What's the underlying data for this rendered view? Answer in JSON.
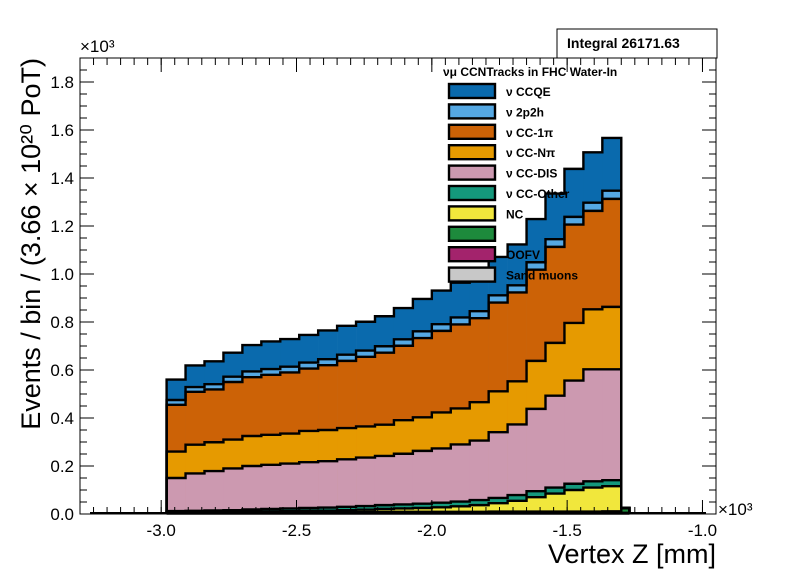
{
  "chart_data": {
    "type": "area",
    "stacked": true,
    "stats_box": "Integral 26171.63",
    "x_axis": {
      "label": "Vertex Z [mm]",
      "range": [
        -3.3,
        -0.95
      ],
      "ticks": [
        "-3.0",
        "-2.5",
        "-2.0",
        "-1.5",
        "-1.0"
      ],
      "tick_values": [
        -3.0,
        -2.5,
        -2.0,
        -1.5,
        -1.0
      ],
      "exponent": "×10³"
    },
    "y_axis": {
      "label": "Events / bin / (3.66 × 10²⁰ PoT)",
      "range": [
        0,
        1.9
      ],
      "ticks": [
        "0.0",
        "0.2",
        "0.4",
        "0.6",
        "0.8",
        "1.0",
        "1.2",
        "1.4",
        "1.6",
        "1.8"
      ],
      "tick_values": [
        0.0,
        0.2,
        0.4,
        0.6,
        0.8,
        1.0,
        1.2,
        1.4,
        1.6,
        1.8
      ],
      "exponent": "×10³"
    },
    "legend": {
      "title": "νμ CCNTracks in FHC Water-In",
      "placement": "top-right"
    },
    "bin_edges": [
      -2.98,
      -2.91,
      -2.84,
      -2.77,
      -2.7,
      -2.63,
      -2.56,
      -2.49,
      -2.42,
      -2.35,
      -2.28,
      -2.21,
      -2.14,
      -2.07,
      -2.0,
      -1.93,
      -1.86,
      -1.79,
      -1.72,
      -1.65,
      -1.58,
      -1.51,
      -1.44,
      -1.37,
      -1.3,
      -1.27
    ],
    "series": [
      {
        "name": "Sand muons",
        "color": "#c8c8c8",
        "values": [
          0.002,
          0.002,
          0.002,
          0.002,
          0.002,
          0.002,
          0.002,
          0.002,
          0.002,
          0.002,
          0.002,
          0.002,
          0.002,
          0.002,
          0.002,
          0.002,
          0.002,
          0.002,
          0.002,
          0.002,
          0.002,
          0.002,
          0.002,
          0.002,
          0.002
        ]
      },
      {
        "name": "OOFV",
        "color": "#a3236c",
        "values": [
          0.003,
          0.003,
          0.003,
          0.003,
          0.003,
          0.003,
          0.003,
          0.003,
          0.003,
          0.003,
          0.003,
          0.003,
          0.003,
          0.003,
          0.003,
          0.003,
          0.003,
          0.003,
          0.003,
          0.003,
          0.003,
          0.003,
          0.003,
          0.003,
          0.003
        ]
      },
      {
        "name": "",
        "color": "#1d8a3c",
        "values": [
          0.002,
          0.002,
          0.002,
          0.002,
          0.003,
          0.003,
          0.003,
          0.003,
          0.003,
          0.003,
          0.003,
          0.004,
          0.004,
          0.004,
          0.004,
          0.004,
          0.004,
          0.005,
          0.005,
          0.005,
          0.005,
          0.005,
          0.005,
          0.006,
          0.02
        ]
      },
      {
        "name": "NC",
        "color": "#f1e73c",
        "values": [
          0.0,
          0.0,
          0.001,
          0.001,
          0.002,
          0.003,
          0.004,
          0.005,
          0.006,
          0.008,
          0.01,
          0.012,
          0.014,
          0.016,
          0.019,
          0.023,
          0.028,
          0.035,
          0.045,
          0.06,
          0.075,
          0.09,
          0.1,
          0.105,
          0.0
        ]
      },
      {
        "name": "ν CC-Other",
        "color": "#14987c",
        "values": [
          0.005,
          0.006,
          0.007,
          0.008,
          0.009,
          0.01,
          0.011,
          0.012,
          0.013,
          0.014,
          0.015,
          0.016,
          0.017,
          0.018,
          0.019,
          0.02,
          0.021,
          0.022,
          0.024,
          0.025,
          0.025,
          0.026,
          0.026,
          0.025,
          0.0
        ]
      },
      {
        "name": "ν CC-DIS",
        "color": "#cc99b0",
        "values": [
          0.138,
          0.156,
          0.164,
          0.174,
          0.181,
          0.184,
          0.187,
          0.191,
          0.193,
          0.198,
          0.202,
          0.205,
          0.211,
          0.22,
          0.226,
          0.238,
          0.248,
          0.274,
          0.294,
          0.343,
          0.383,
          0.43,
          0.467,
          0.462,
          0.0
        ]
      },
      {
        "name": "ν CC-Nπ",
        "color": "#e69a00",
        "values": [
          0.11,
          0.12,
          0.12,
          0.12,
          0.125,
          0.125,
          0.125,
          0.13,
          0.13,
          0.13,
          0.13,
          0.13,
          0.14,
          0.14,
          0.15,
          0.15,
          0.16,
          0.17,
          0.18,
          0.2,
          0.22,
          0.24,
          0.25,
          0.26,
          0.0
        ]
      },
      {
        "name": "ν CC-1π",
        "color": "#cc6206",
        "values": [
          0.195,
          0.22,
          0.22,
          0.24,
          0.245,
          0.25,
          0.255,
          0.26,
          0.27,
          0.28,
          0.29,
          0.3,
          0.31,
          0.33,
          0.34,
          0.35,
          0.35,
          0.37,
          0.37,
          0.38,
          0.4,
          0.41,
          0.41,
          0.45,
          0.0
        ]
      },
      {
        "name": "ν 2p2h",
        "color": "#55a8e3",
        "values": [
          0.02,
          0.02,
          0.022,
          0.022,
          0.024,
          0.024,
          0.024,
          0.025,
          0.025,
          0.026,
          0.026,
          0.027,
          0.027,
          0.028,
          0.028,
          0.029,
          0.029,
          0.03,
          0.03,
          0.031,
          0.032,
          0.032,
          0.034,
          0.034,
          0.0
        ]
      },
      {
        "name": "ν CCQE",
        "color": "#0a6aad",
        "values": [
          0.085,
          0.09,
          0.095,
          0.1,
          0.11,
          0.115,
          0.115,
          0.115,
          0.12,
          0.12,
          0.12,
          0.125,
          0.13,
          0.135,
          0.14,
          0.145,
          0.15,
          0.16,
          0.17,
          0.18,
          0.19,
          0.2,
          0.21,
          0.22,
          0.0
        ]
      }
    ]
  }
}
